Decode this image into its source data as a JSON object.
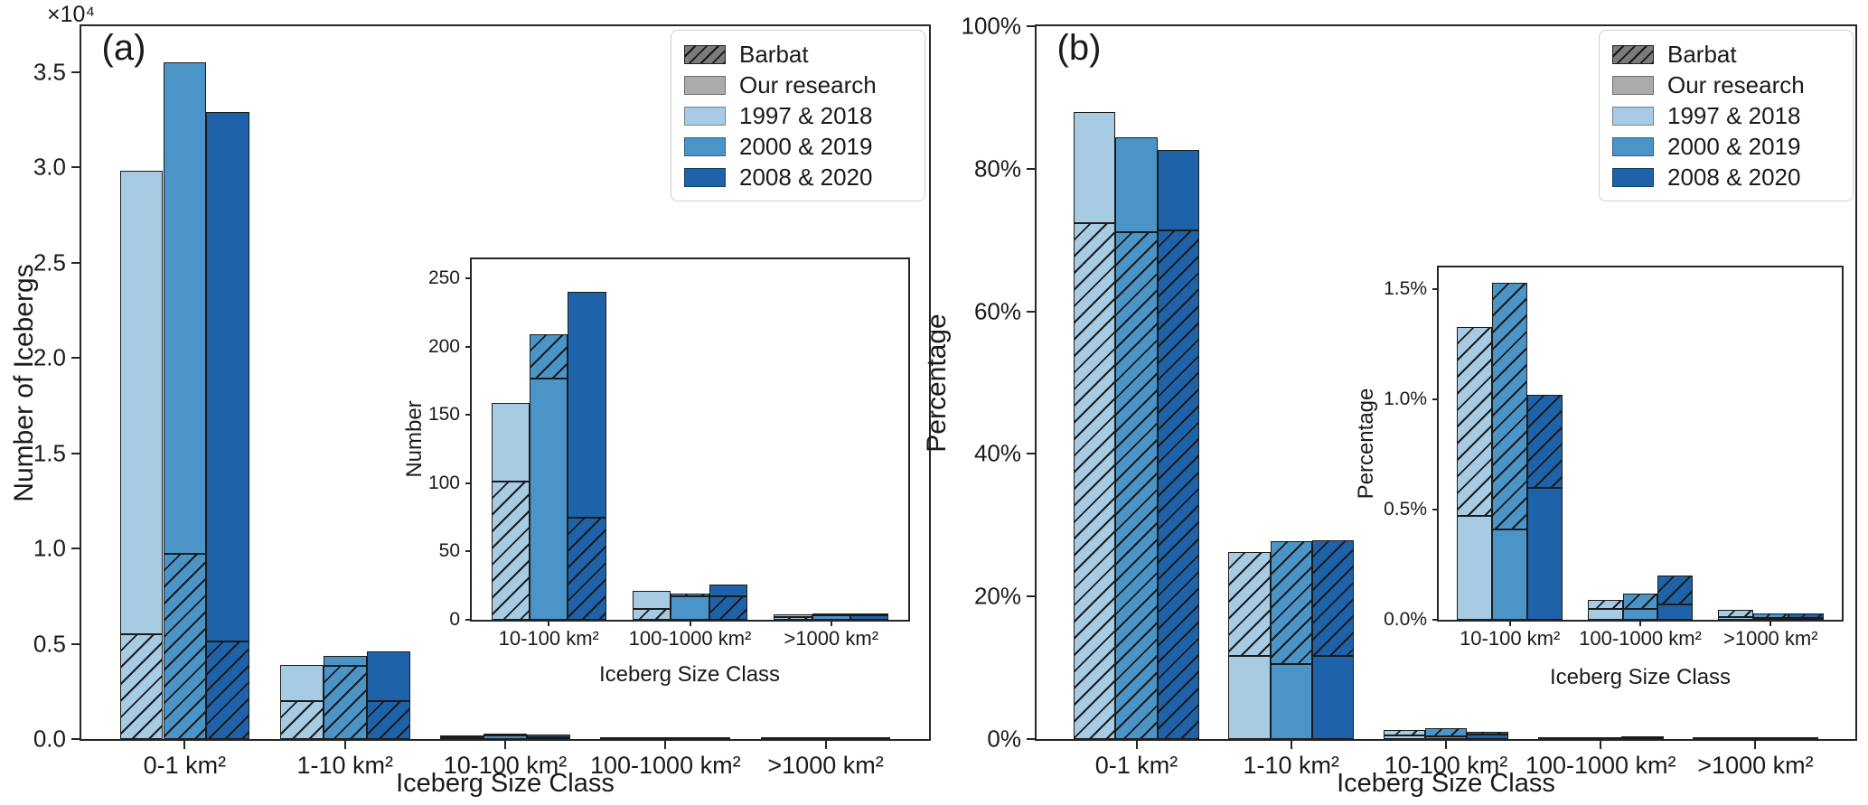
{
  "figure": {
    "colors": {
      "light": "#a6cbe3",
      "medium": "#4b94c7",
      "dark": "#1e62a9",
      "barbat_gray": "#7b7b7b",
      "ours_gray": "#ababab",
      "edge": "#1b1b1b"
    },
    "legend": {
      "position": "upper right",
      "items": [
        {
          "key": "barbat",
          "label": "Barbat",
          "swatch": "hatched-gray"
        },
        {
          "key": "ours",
          "label": "Our research",
          "swatch": "solid-gray"
        },
        {
          "key": "s1997",
          "label": "1997 & 2018",
          "swatch": "color",
          "color": "light"
        },
        {
          "key": "s2000",
          "label": "2000 & 2019",
          "swatch": "color",
          "color": "medium"
        },
        {
          "key": "s2008",
          "label": "2008 & 2020",
          "swatch": "color",
          "color": "dark"
        }
      ]
    }
  },
  "chart_data": [
    {
      "id": "a",
      "type": "bar",
      "title": "(a)",
      "ylabel": "Number of Icebergs",
      "xlabel": "Iceberg Size Class",
      "offset_text": "×10⁴",
      "units": "count",
      "grid": false,
      "categories": [
        "0-1 km²",
        "1-10 km²",
        "10-100 km²",
        "100-1000 km²",
        ">1000 km²"
      ],
      "ylim": [
        0,
        37400
      ],
      "yticks": [
        {
          "v": 0,
          "label": "0.0"
        },
        {
          "v": 5000,
          "label": "0.5"
        },
        {
          "v": 10000,
          "label": "1.0"
        },
        {
          "v": 15000,
          "label": "1.5"
        },
        {
          "v": 20000,
          "label": "2.0"
        },
        {
          "v": 25000,
          "label": "2.5"
        },
        {
          "v": 30000,
          "label": "3.0"
        },
        {
          "v": 35000,
          "label": "3.5"
        }
      ],
      "series": [
        {
          "name": "1997 & 2018",
          "color": "light",
          "our_research": [
            29800,
            3900,
            159,
            21,
            4
          ],
          "barbat": [
            5500,
            2000,
            101,
            8,
            2
          ]
        },
        {
          "name": "2000 & 2019",
          "color": "medium",
          "our_research": [
            35500,
            4350,
            177,
            17,
            3
          ],
          "barbat": [
            9700,
            3850,
            209,
            19,
            4
          ]
        },
        {
          "name": "2008 & 2020",
          "color": "dark",
          "our_research": [
            32900,
            4600,
            240,
            26,
            3
          ],
          "barbat": [
            5100,
            2000,
            75,
            17,
            4
          ]
        }
      ],
      "inset": {
        "ylabel": "Number",
        "xlabel": "Iceberg Size Class",
        "categories": [
          "10-100 km²",
          "100-1000 km²",
          ">1000 km²"
        ],
        "ylim": [
          0,
          264
        ],
        "yticks": [
          {
            "v": 0,
            "label": "0"
          },
          {
            "v": 50,
            "label": "50"
          },
          {
            "v": 100,
            "label": "100"
          },
          {
            "v": 150,
            "label": "150"
          },
          {
            "v": 200,
            "label": "200"
          },
          {
            "v": 250,
            "label": "250"
          }
        ]
      }
    },
    {
      "id": "b",
      "type": "bar",
      "title": "(b)",
      "ylabel": "Percentage",
      "xlabel": "Iceberg Size Class",
      "offset_text": "",
      "units": "percent",
      "grid": false,
      "categories": [
        "0-1 km²",
        "1-10 km²",
        "10-100 km²",
        "100-1000 km²",
        ">1000 km²"
      ],
      "ylim": [
        0,
        100
      ],
      "yticks": [
        {
          "v": 0,
          "label": "0%"
        },
        {
          "v": 20,
          "label": "20%"
        },
        {
          "v": 40,
          "label": "40%"
        },
        {
          "v": 60,
          "label": "60%"
        },
        {
          "v": 80,
          "label": "80%"
        },
        {
          "v": 100,
          "label": "100%"
        }
      ],
      "series": [
        {
          "name": "1997 & 2018",
          "color": "light",
          "our_research": [
            88.0,
            11.6,
            0.47,
            0.05,
            0.012
          ],
          "barbat": [
            72.4,
            26.3,
            1.33,
            0.09,
            0.045
          ]
        },
        {
          "name": "2000 & 2019",
          "color": "medium",
          "our_research": [
            84.4,
            10.5,
            0.41,
            0.05,
            0.01
          ],
          "barbat": [
            71.1,
            27.7,
            1.53,
            0.12,
            0.03
          ]
        },
        {
          "name": "2008 & 2020",
          "color": "dark",
          "our_research": [
            82.7,
            11.7,
            0.6,
            0.07,
            0.01
          ],
          "barbat": [
            71.3,
            27.9,
            1.02,
            0.2,
            0.03
          ]
        }
      ],
      "inset": {
        "ylabel": "Percentage",
        "xlabel": "Iceberg Size Class",
        "categories": [
          "10-100 km²",
          "100-1000 km²",
          ">1000 km²"
        ],
        "ylim": [
          0,
          1.6
        ],
        "yticks": [
          {
            "v": 0,
            "label": "0.0%"
          },
          {
            "v": 0.5,
            "label": "0.5%"
          },
          {
            "v": 1.0,
            "label": "1.0%"
          },
          {
            "v": 1.5,
            "label": "1.5%"
          }
        ]
      }
    }
  ]
}
